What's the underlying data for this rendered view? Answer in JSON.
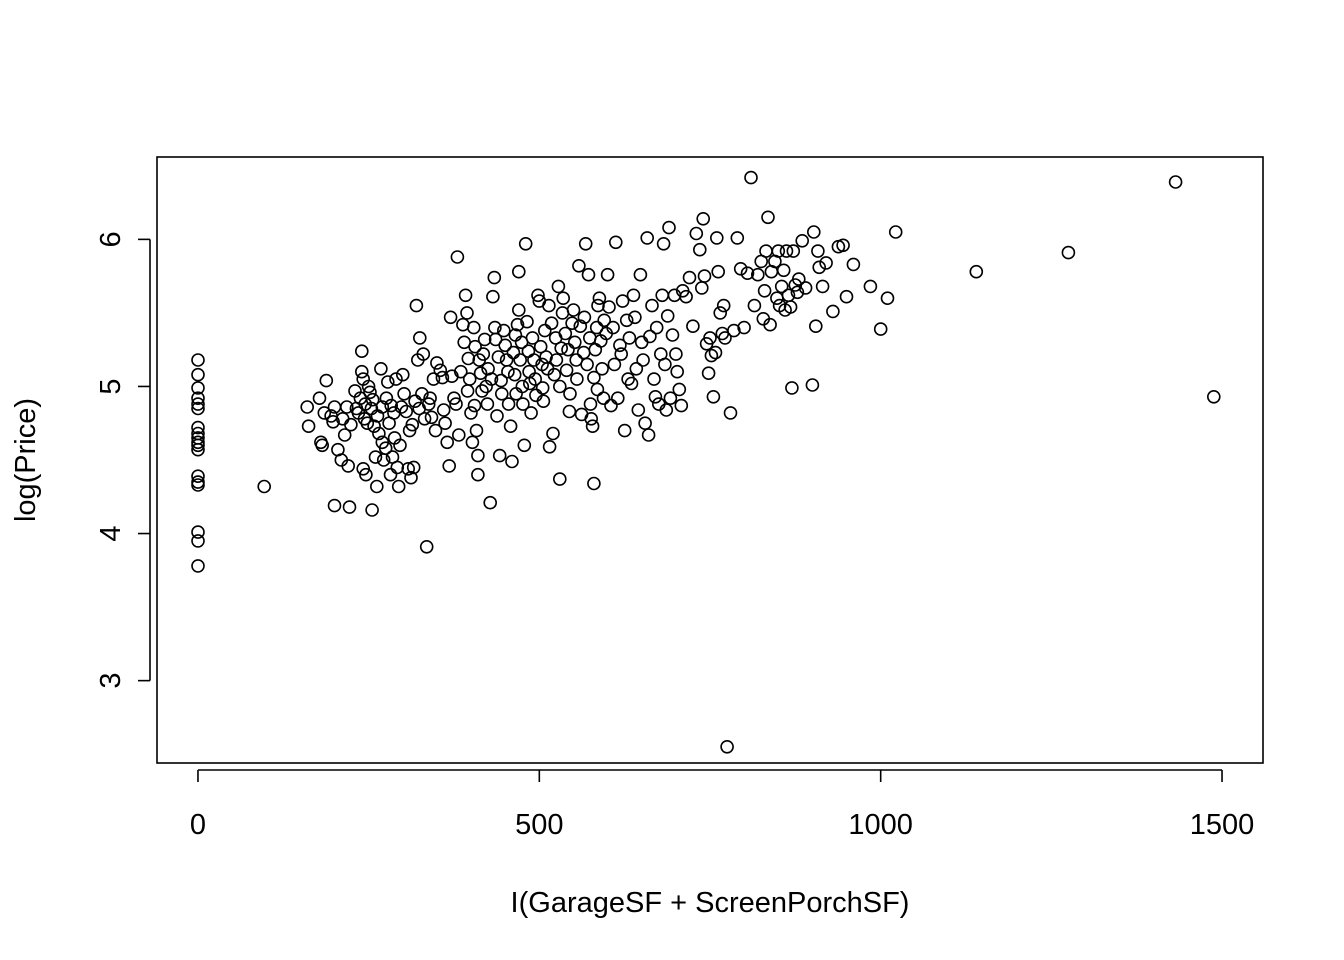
{
  "chart_data": {
    "type": "scatter",
    "title": "",
    "xlabel": "I(GarageSF + ScreenPorchSF)",
    "ylabel": "log(Price)",
    "xlim": [
      -60,
      1560
    ],
    "ylim": [
      2.44,
      6.56
    ],
    "xticks": [
      0,
      500,
      1000,
      1500
    ],
    "xtick_labels": [
      "0",
      "500",
      "1000",
      "1500"
    ],
    "yticks": [
      3,
      4,
      5,
      6
    ],
    "ytick_labels": [
      "3",
      "4",
      "5",
      "6"
    ],
    "grid": false,
    "legend": "none",
    "marker": "open-circle",
    "points": [
      [
        0,
        5.18
      ],
      [
        0,
        5.08
      ],
      [
        0,
        4.99
      ],
      [
        0,
        4.92
      ],
      [
        0,
        4.88
      ],
      [
        0,
        4.85
      ],
      [
        0,
        4.72
      ],
      [
        0,
        4.68
      ],
      [
        0,
        4.65
      ],
      [
        0,
        4.62
      ],
      [
        0,
        4.6
      ],
      [
        0,
        4.57
      ],
      [
        0,
        4.39
      ],
      [
        0,
        4.35
      ],
      [
        0,
        4.33
      ],
      [
        0,
        4.01
      ],
      [
        0,
        3.95
      ],
      [
        0,
        3.78
      ],
      [
        97,
        4.32
      ],
      [
        160,
        4.86
      ],
      [
        162,
        4.73
      ],
      [
        178,
        4.92
      ],
      [
        180,
        4.62
      ],
      [
        182,
        4.6
      ],
      [
        185,
        4.82
      ],
      [
        188,
        5.04
      ],
      [
        195,
        4.8
      ],
      [
        198,
        4.76
      ],
      [
        200,
        4.86
      ],
      [
        200,
        4.19
      ],
      [
        205,
        4.57
      ],
      [
        210,
        4.5
      ],
      [
        212,
        4.78
      ],
      [
        215,
        4.67
      ],
      [
        218,
        4.86
      ],
      [
        220,
        4.46
      ],
      [
        222,
        4.18
      ],
      [
        224,
        4.74
      ],
      [
        230,
        4.97
      ],
      [
        232,
        4.85
      ],
      [
        235,
        4.82
      ],
      [
        238,
        4.92
      ],
      [
        240,
        5.24
      ],
      [
        240,
        5.1
      ],
      [
        242,
        5.05
      ],
      [
        242,
        4.44
      ],
      [
        244,
        4.78
      ],
      [
        245,
        4.88
      ],
      [
        246,
        4.4
      ],
      [
        248,
        4.75
      ],
      [
        250,
        5.0
      ],
      [
        252,
        4.96
      ],
      [
        254,
        4.85
      ],
      [
        255,
        4.16
      ],
      [
        256,
        4.91
      ],
      [
        258,
        4.73
      ],
      [
        260,
        4.52
      ],
      [
        262,
        4.32
      ],
      [
        263,
        4.8
      ],
      [
        265,
        4.68
      ],
      [
        268,
        5.12
      ],
      [
        270,
        4.86
      ],
      [
        270,
        4.62
      ],
      [
        272,
        4.5
      ],
      [
        275,
        4.58
      ],
      [
        276,
        4.92
      ],
      [
        278,
        5.03
      ],
      [
        280,
        4.75
      ],
      [
        282,
        4.4
      ],
      [
        283,
        4.87
      ],
      [
        285,
        4.52
      ],
      [
        287,
        4.82
      ],
      [
        288,
        4.65
      ],
      [
        290,
        5.05
      ],
      [
        292,
        4.45
      ],
      [
        294,
        4.32
      ],
      [
        296,
        4.6
      ],
      [
        298,
        4.86
      ],
      [
        300,
        5.08
      ],
      [
        302,
        4.95
      ],
      [
        305,
        4.83
      ],
      [
        308,
        4.44
      ],
      [
        310,
        4.7
      ],
      [
        312,
        4.38
      ],
      [
        314,
        4.74
      ],
      [
        316,
        4.45
      ],
      [
        318,
        4.9
      ],
      [
        320,
        5.55
      ],
      [
        322,
        5.18
      ],
      [
        324,
        4.85
      ],
      [
        325,
        5.33
      ],
      [
        328,
        4.95
      ],
      [
        330,
        5.22
      ],
      [
        332,
        4.78
      ],
      [
        335,
        3.91
      ],
      [
        338,
        4.88
      ],
      [
        340,
        4.92
      ],
      [
        342,
        4.79
      ],
      [
        345,
        5.05
      ],
      [
        348,
        4.7
      ],
      [
        350,
        5.16
      ],
      [
        355,
        5.11
      ],
      [
        358,
        5.06
      ],
      [
        360,
        4.84
      ],
      [
        362,
        4.75
      ],
      [
        365,
        4.62
      ],
      [
        368,
        4.46
      ],
      [
        370,
        5.47
      ],
      [
        372,
        5.07
      ],
      [
        375,
        4.92
      ],
      [
        378,
        4.88
      ],
      [
        380,
        5.88
      ],
      [
        382,
        4.67
      ],
      [
        385,
        5.1
      ],
      [
        388,
        5.42
      ],
      [
        390,
        5.3
      ],
      [
        392,
        5.62
      ],
      [
        394,
        5.5
      ],
      [
        395,
        4.97
      ],
      [
        396,
        5.19
      ],
      [
        398,
        5.05
      ],
      [
        400,
        4.82
      ],
      [
        402,
        4.62
      ],
      [
        404,
        5.4
      ],
      [
        405,
        4.87
      ],
      [
        406,
        5.27
      ],
      [
        408,
        4.7
      ],
      [
        410,
        4.53
      ],
      [
        410,
        4.4
      ],
      [
        412,
        5.18
      ],
      [
        414,
        5.09
      ],
      [
        416,
        4.97
      ],
      [
        418,
        5.22
      ],
      [
        420,
        5.32
      ],
      [
        422,
        5.0
      ],
      [
        424,
        4.88
      ],
      [
        425,
        5.12
      ],
      [
        428,
        4.21
      ],
      [
        430,
        5.05
      ],
      [
        432,
        5.61
      ],
      [
        434,
        5.74
      ],
      [
        435,
        5.4
      ],
      [
        436,
        5.32
      ],
      [
        438,
        4.8
      ],
      [
        440,
        5.2
      ],
      [
        442,
        4.53
      ],
      [
        444,
        5.04
      ],
      [
        445,
        4.95
      ],
      [
        448,
        5.38
      ],
      [
        450,
        5.28
      ],
      [
        452,
        5.18
      ],
      [
        454,
        5.1
      ],
      [
        455,
        4.88
      ],
      [
        458,
        4.73
      ],
      [
        460,
        4.49
      ],
      [
        462,
        5.23
      ],
      [
        464,
        5.08
      ],
      [
        465,
        5.35
      ],
      [
        466,
        4.95
      ],
      [
        468,
        5.42
      ],
      [
        470,
        5.78
      ],
      [
        470,
        5.52
      ],
      [
        472,
        5.18
      ],
      [
        474,
        5.3
      ],
      [
        475,
        5.0
      ],
      [
        476,
        4.88
      ],
      [
        478,
        4.6
      ],
      [
        480,
        5.97
      ],
      [
        482,
        5.44
      ],
      [
        484,
        5.24
      ],
      [
        485,
        5.1
      ],
      [
        486,
        5.02
      ],
      [
        488,
        4.82
      ],
      [
        490,
        5.33
      ],
      [
        492,
        5.18
      ],
      [
        494,
        5.05
      ],
      [
        495,
        4.94
      ],
      [
        498,
        5.62
      ],
      [
        500,
        5.58
      ],
      [
        502,
        5.27
      ],
      [
        504,
        5.15
      ],
      [
        505,
        4.99
      ],
      [
        506,
        4.9
      ],
      [
        508,
        5.38
      ],
      [
        510,
        5.2
      ],
      [
        512,
        5.12
      ],
      [
        514,
        5.55
      ],
      [
        515,
        4.59
      ],
      [
        518,
        5.43
      ],
      [
        520,
        4.68
      ],
      [
        522,
        5.08
      ],
      [
        524,
        5.33
      ],
      [
        525,
        5.18
      ],
      [
        528,
        5.68
      ],
      [
        530,
        5.0
      ],
      [
        530,
        4.37
      ],
      [
        532,
        5.26
      ],
      [
        534,
        5.5
      ],
      [
        535,
        5.6
      ],
      [
        538,
        5.36
      ],
      [
        540,
        5.11
      ],
      [
        542,
        5.25
      ],
      [
        544,
        4.83
      ],
      [
        545,
        4.95
      ],
      [
        548,
        5.43
      ],
      [
        550,
        5.52
      ],
      [
        552,
        5.3
      ],
      [
        554,
        5.18
      ],
      [
        555,
        5.05
      ],
      [
        558,
        5.82
      ],
      [
        560,
        5.41
      ],
      [
        562,
        4.81
      ],
      [
        565,
        5.23
      ],
      [
        566,
        5.47
      ],
      [
        568,
        5.97
      ],
      [
        570,
        5.15
      ],
      [
        572,
        5.76
      ],
      [
        574,
        5.33
      ],
      [
        575,
        4.88
      ],
      [
        576,
        4.78
      ],
      [
        578,
        4.73
      ],
      [
        580,
        4.34
      ],
      [
        580,
        5.06
      ],
      [
        582,
        5.25
      ],
      [
        584,
        5.4
      ],
      [
        585,
        4.98
      ],
      [
        586,
        5.55
      ],
      [
        588,
        5.6
      ],
      [
        590,
        5.31
      ],
      [
        592,
        5.12
      ],
      [
        594,
        4.92
      ],
      [
        595,
        5.45
      ],
      [
        598,
        5.36
      ],
      [
        600,
        5.76
      ],
      [
        602,
        5.54
      ],
      [
        605,
        4.87
      ],
      [
        608,
        5.4
      ],
      [
        610,
        5.15
      ],
      [
        612,
        5.98
      ],
      [
        615,
        4.92
      ],
      [
        618,
        5.28
      ],
      [
        620,
        5.22
      ],
      [
        622,
        5.58
      ],
      [
        625,
        4.7
      ],
      [
        628,
        5.45
      ],
      [
        630,
        5.05
      ],
      [
        632,
        5.33
      ],
      [
        635,
        5.02
      ],
      [
        638,
        5.62
      ],
      [
        640,
        5.47
      ],
      [
        642,
        5.12
      ],
      [
        645,
        4.84
      ],
      [
        648,
        5.76
      ],
      [
        650,
        5.3
      ],
      [
        652,
        5.18
      ],
      [
        655,
        4.75
      ],
      [
        658,
        6.01
      ],
      [
        660,
        4.67
      ],
      [
        662,
        5.34
      ],
      [
        665,
        5.55
      ],
      [
        668,
        5.05
      ],
      [
        670,
        4.93
      ],
      [
        672,
        5.4
      ],
      [
        675,
        4.88
      ],
      [
        678,
        5.22
      ],
      [
        680,
        5.62
      ],
      [
        682,
        5.97
      ],
      [
        684,
        5.15
      ],
      [
        686,
        4.84
      ],
      [
        688,
        5.48
      ],
      [
        690,
        6.08
      ],
      [
        692,
        4.92
      ],
      [
        695,
        5.35
      ],
      [
        698,
        5.62
      ],
      [
        700,
        5.22
      ],
      [
        702,
        5.1
      ],
      [
        705,
        4.98
      ],
      [
        708,
        4.87
      ],
      [
        710,
        5.65
      ],
      [
        715,
        5.61
      ],
      [
        720,
        5.74
      ],
      [
        725,
        5.41
      ],
      [
        730,
        6.04
      ],
      [
        735,
        5.93
      ],
      [
        738,
        5.67
      ],
      [
        740,
        6.14
      ],
      [
        742,
        5.75
      ],
      [
        745,
        5.29
      ],
      [
        748,
        5.09
      ],
      [
        750,
        5.33
      ],
      [
        752,
        5.21
      ],
      [
        755,
        4.93
      ],
      [
        758,
        5.23
      ],
      [
        760,
        6.01
      ],
      [
        762,
        5.78
      ],
      [
        765,
        5.5
      ],
      [
        768,
        5.36
      ],
      [
        770,
        5.55
      ],
      [
        772,
        5.33
      ],
      [
        775,
        2.55
      ],
      [
        780,
        4.82
      ],
      [
        785,
        5.38
      ],
      [
        790,
        6.01
      ],
      [
        795,
        5.8
      ],
      [
        800,
        5.4
      ],
      [
        805,
        5.77
      ],
      [
        810,
        6.42
      ],
      [
        815,
        5.55
      ],
      [
        820,
        5.76
      ],
      [
        825,
        5.85
      ],
      [
        828,
        5.46
      ],
      [
        830,
        5.65
      ],
      [
        832,
        5.92
      ],
      [
        835,
        6.15
      ],
      [
        838,
        5.42
      ],
      [
        840,
        5.78
      ],
      [
        845,
        5.85
      ],
      [
        848,
        5.6
      ],
      [
        850,
        5.92
      ],
      [
        852,
        5.55
      ],
      [
        855,
        5.68
      ],
      [
        858,
        5.79
      ],
      [
        860,
        5.52
      ],
      [
        862,
        5.92
      ],
      [
        865,
        5.62
      ],
      [
        868,
        5.54
      ],
      [
        870,
        4.99
      ],
      [
        872,
        5.92
      ],
      [
        875,
        5.69
      ],
      [
        878,
        5.64
      ],
      [
        880,
        5.73
      ],
      [
        885,
        5.99
      ],
      [
        890,
        5.67
      ],
      [
        900,
        5.01
      ],
      [
        902,
        6.05
      ],
      [
        905,
        5.41
      ],
      [
        908,
        5.92
      ],
      [
        910,
        5.81
      ],
      [
        915,
        5.68
      ],
      [
        920,
        5.84
      ],
      [
        930,
        5.51
      ],
      [
        938,
        5.95
      ],
      [
        945,
        5.96
      ],
      [
        950,
        5.61
      ],
      [
        960,
        5.83
      ],
      [
        985,
        5.68
      ],
      [
        1000,
        5.39
      ],
      [
        1010,
        5.6
      ],
      [
        1022,
        6.05
      ],
      [
        1140,
        5.78
      ],
      [
        1275,
        5.91
      ],
      [
        1432,
        6.39
      ],
      [
        1488,
        4.93
      ]
    ]
  }
}
